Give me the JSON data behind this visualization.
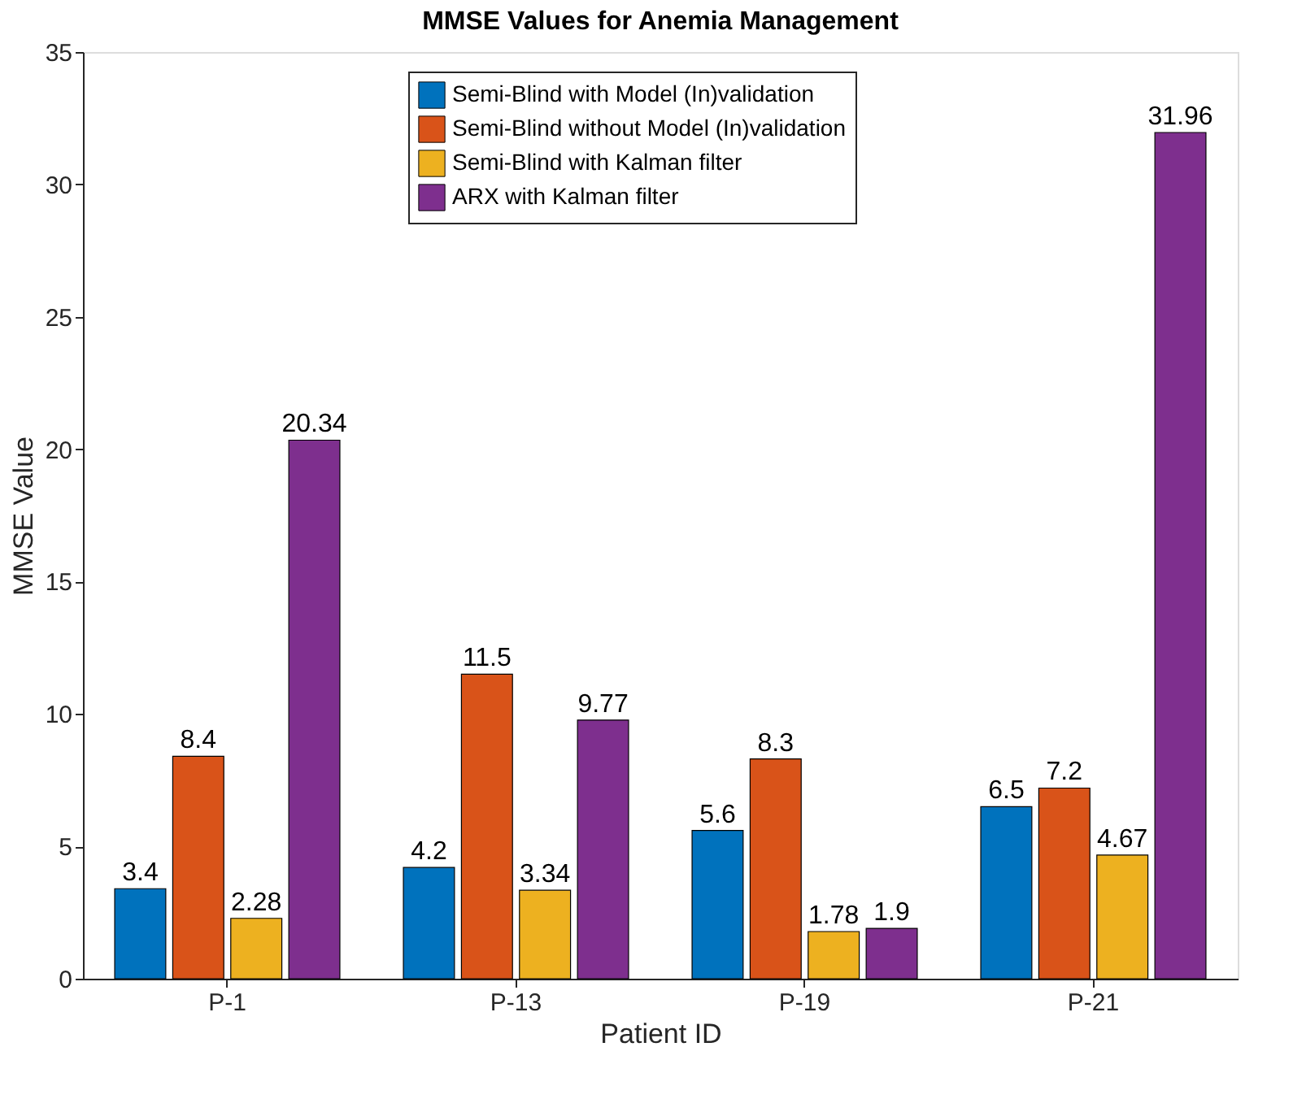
{
  "chart_data": {
    "type": "bar",
    "title": "MMSE Values for Anemia Management",
    "xlabel": "Patient ID",
    "ylabel": "MMSE Value",
    "categories": [
      "P-1",
      "P-13",
      "P-19",
      "P-21"
    ],
    "series": [
      {
        "name": "Semi-Blind with Model (In)validation",
        "color": "#0072bd",
        "values": [
          3.4,
          4.2,
          5.6,
          6.5
        ]
      },
      {
        "name": "Semi-Blind without Model (In)validation",
        "color": "#d95319",
        "values": [
          8.4,
          11.5,
          8.3,
          7.2
        ]
      },
      {
        "name": "Semi-Blind with Kalman filter",
        "color": "#edb120",
        "values": [
          2.28,
          3.34,
          1.78,
          4.67
        ]
      },
      {
        "name": "ARX with Kalman filter",
        "color": "#7e2f8e",
        "values": [
          20.34,
          9.77,
          1.9,
          31.96
        ]
      }
    ],
    "ylim": [
      0,
      35
    ],
    "yticks": [
      0,
      5,
      10,
      15,
      20,
      25,
      30,
      35
    ],
    "data_labels": true,
    "legend": "top",
    "grid": false
  }
}
